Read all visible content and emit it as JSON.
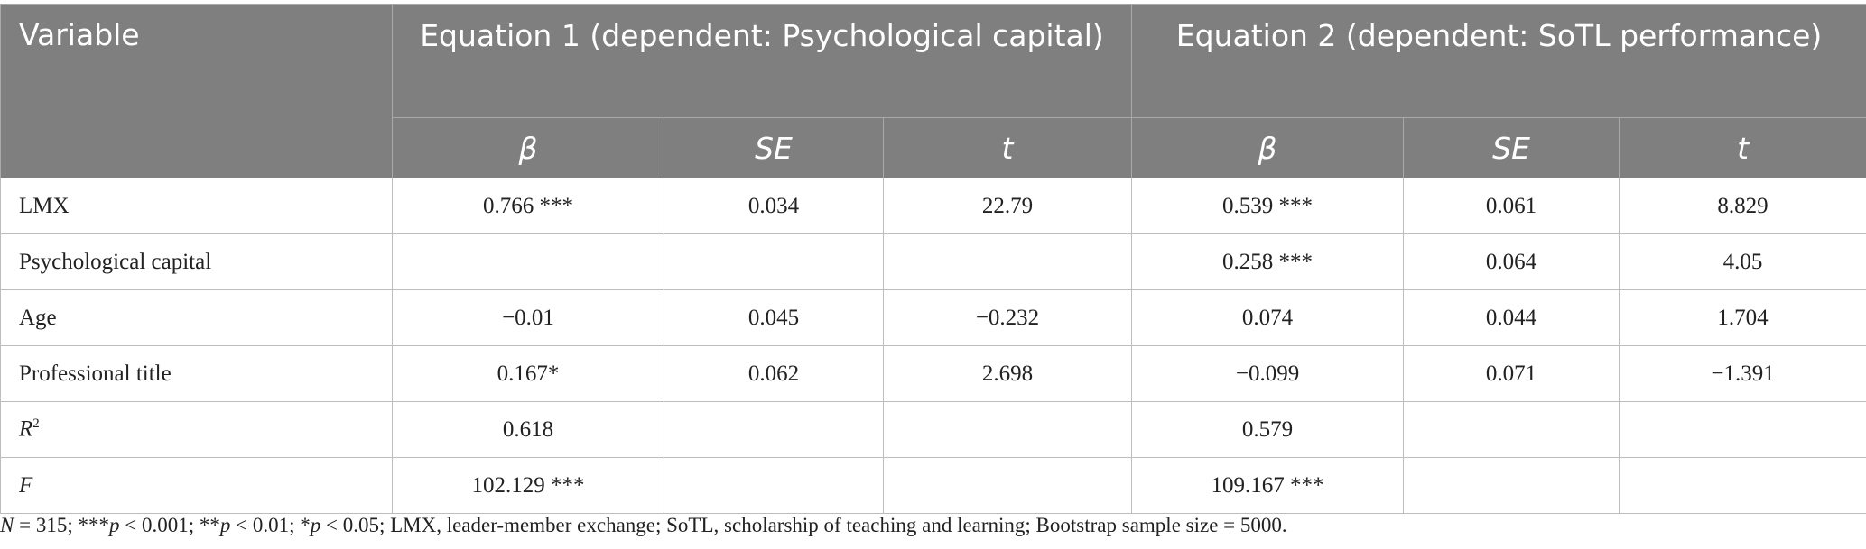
{
  "table": {
    "header": {
      "variable": "Variable",
      "groups": [
        "Equation 1 (dependent: Psychological capital)",
        "Equation 2 (dependent: SoTL performance)"
      ],
      "columns": [
        "β",
        "SE",
        "t",
        "β",
        "SE",
        "t"
      ]
    },
    "rows": [
      {
        "label": "LMX",
        "cells": [
          "0.766 ***",
          "0.034",
          "22.79",
          "0.539 ***",
          "0.061",
          "8.829"
        ]
      },
      {
        "label": "Psychological capital",
        "cells": [
          null,
          null,
          null,
          "0.258 ***",
          "0.064",
          "4.05"
        ]
      },
      {
        "label": "Age",
        "cells": [
          "−0.01",
          "0.045",
          "−0.232",
          "0.074",
          "0.044",
          "1.704"
        ]
      },
      {
        "label": "Professional title",
        "cells": [
          "0.167*",
          "0.062",
          "2.698",
          "−0.099",
          "0.071",
          "−1.391"
        ]
      },
      {
        "label": {
          "text": "R",
          "sup": "2",
          "italic": true
        },
        "cells": [
          "0.618",
          null,
          null,
          "0.579",
          null,
          null
        ]
      },
      {
        "label": {
          "text": "F",
          "italic": true
        },
        "cells": [
          "102.129 ***",
          null,
          null,
          "109.167 ***",
          null,
          null
        ]
      }
    ]
  },
  "note": [
    {
      "text": "N",
      "italic": true
    },
    {
      "text": " = 315; ***"
    },
    {
      "text": "p",
      "italic": true
    },
    {
      "text": " < 0.001; **"
    },
    {
      "text": "p",
      "italic": true
    },
    {
      "text": " < 0.01; *"
    },
    {
      "text": "p",
      "italic": true
    },
    {
      "text": " < 0.05; LMX, leader-member exchange; SoTL, scholarship of teaching and learning; Bootstrap sample size = 5000."
    }
  ]
}
